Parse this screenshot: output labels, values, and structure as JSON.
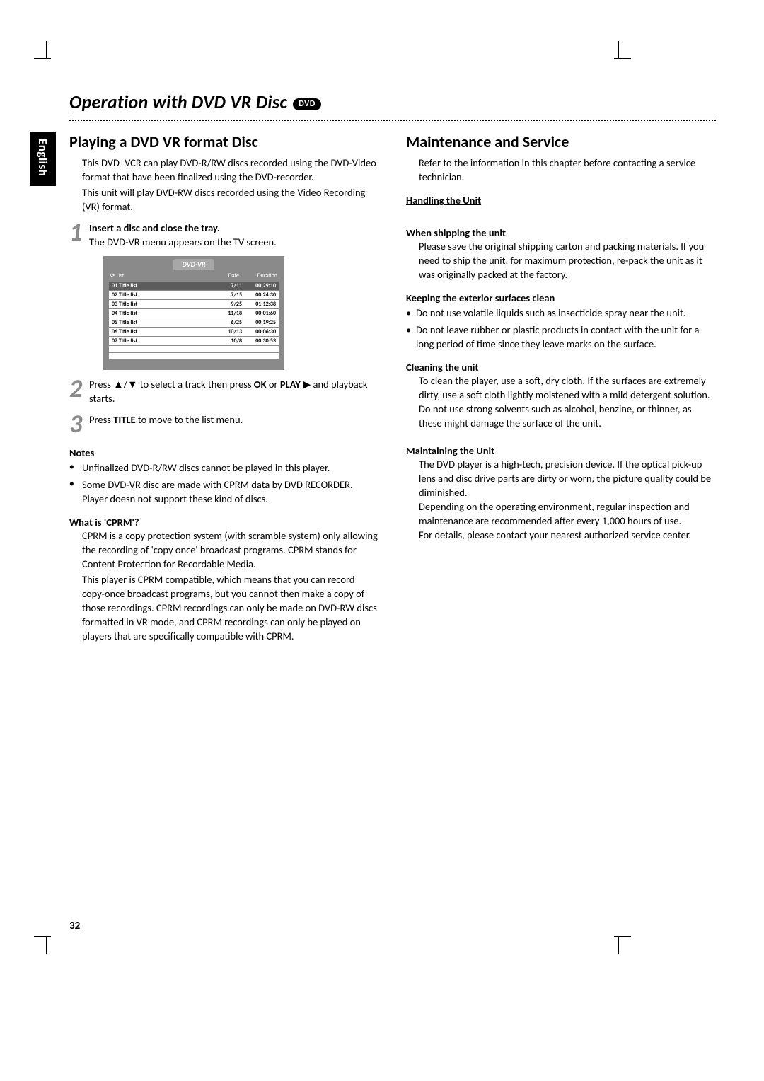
{
  "page_number": "32",
  "language_tab": "English",
  "header": {
    "title": "Operation with DVD VR Disc",
    "badge": "DVD"
  },
  "left": {
    "h2": "Playing a DVD VR format Disc",
    "intro1": "This DVD+VCR can play DVD-R/RW discs recorded using the DVD-Video format that have been finalized using the DVD-recorder.",
    "intro2": "This unit will play DVD-RW discs recorded using the Video Recording (VR) format.",
    "steps": [
      {
        "n": "1",
        "bold": "Insert a disc and close the tray.",
        "text": "The DVD-VR menu appears on the TV screen."
      },
      {
        "n": "2",
        "text_parts": [
          "Press ▲/▼ to select a track then press ",
          "OK",
          " or ",
          "PLAY",
          " ▶ and playback starts."
        ]
      },
      {
        "n": "3",
        "text_parts": [
          "Press ",
          "TITLE",
          " to move to the list menu."
        ]
      }
    ],
    "vr_menu": {
      "title": "DVD-VR",
      "headers": {
        "c1": "List",
        "c2": "Date",
        "c3": "Duration"
      },
      "rows": [
        {
          "c1": "01 Title list",
          "c2": "7/11",
          "c3": "00:29:10",
          "selected": true
        },
        {
          "c1": "02 Title list",
          "c2": "7/15",
          "c3": "00:24:30"
        },
        {
          "c1": "03 Title list",
          "c2": "9/25",
          "c3": "01:12:38"
        },
        {
          "c1": "04 Title list",
          "c2": "11/18",
          "c3": "00:01:60"
        },
        {
          "c1": "05 Title list",
          "c2": "6/25",
          "c3": "00:19:25"
        },
        {
          "c1": "06 Title list",
          "c2": "10/13",
          "c3": "00:06:30"
        },
        {
          "c1": "07 Title list",
          "c2": "10/8",
          "c3": "00:30:53"
        }
      ],
      "blank_rows": 2
    },
    "notes_h": "Notes",
    "notes": [
      "Unfinalized DVD-R/RW discs cannot be played in this player.",
      "Some DVD-VR disc are made with CPRM data by DVD RECORDER. Player doesn not support these kind of discs."
    ],
    "cprm_h": "What is 'CPRM'?",
    "cprm1": "CPRM is a copy protection system (with scramble system) only allowing the recording of 'copy once' broadcast programs. CPRM stands for Content Protection for Recordable Media.",
    "cprm2": "This player is CPRM compatible, which means that you can record copy-once broadcast programs, but you cannot then make a copy of those recordings. CPRM recordings can only be made on DVD-RW discs formatted in VR mode, and CPRM recordings can only be played on players that are specifically compatible with CPRM."
  },
  "right": {
    "h2": "Maintenance and Service",
    "intro": "Refer to the information in this chapter before contacting a service technician.",
    "handling_h": "Handling the Unit",
    "ship_h": "When shipping the unit",
    "ship_t": "Please save the original shipping carton and packing materials. If you need to ship the unit, for maximum protection, re-pack the unit as it was originally packed at the factory.",
    "ext_h": "Keeping the exterior surfaces clean",
    "ext_bullets": [
      "Do not use volatile liquids such as insecticide spray near the unit.",
      "Do not leave rubber or plastic products in contact with the unit for a long period of time since they leave marks on the surface."
    ],
    "clean_h": "Cleaning the unit",
    "clean_t1": "To clean the player, use a soft, dry cloth. If the surfaces are extremely dirty, use a soft cloth lightly moistened with a mild detergent solution.",
    "clean_t2": "Do not use strong solvents such as alcohol, benzine, or thinner, as these might damage the surface of the unit.",
    "maint_h": "Maintaining the Unit",
    "maint_t1": "The DVD player is a high-tech, precision device. If the optical pick-up lens and disc drive parts are dirty or worn, the picture quality could be diminished.",
    "maint_t2": "Depending on the operating environment, regular inspection and maintenance are recommended after every 1,000 hours of use.",
    "maint_t3": "For details, please contact your nearest authorized service center."
  }
}
